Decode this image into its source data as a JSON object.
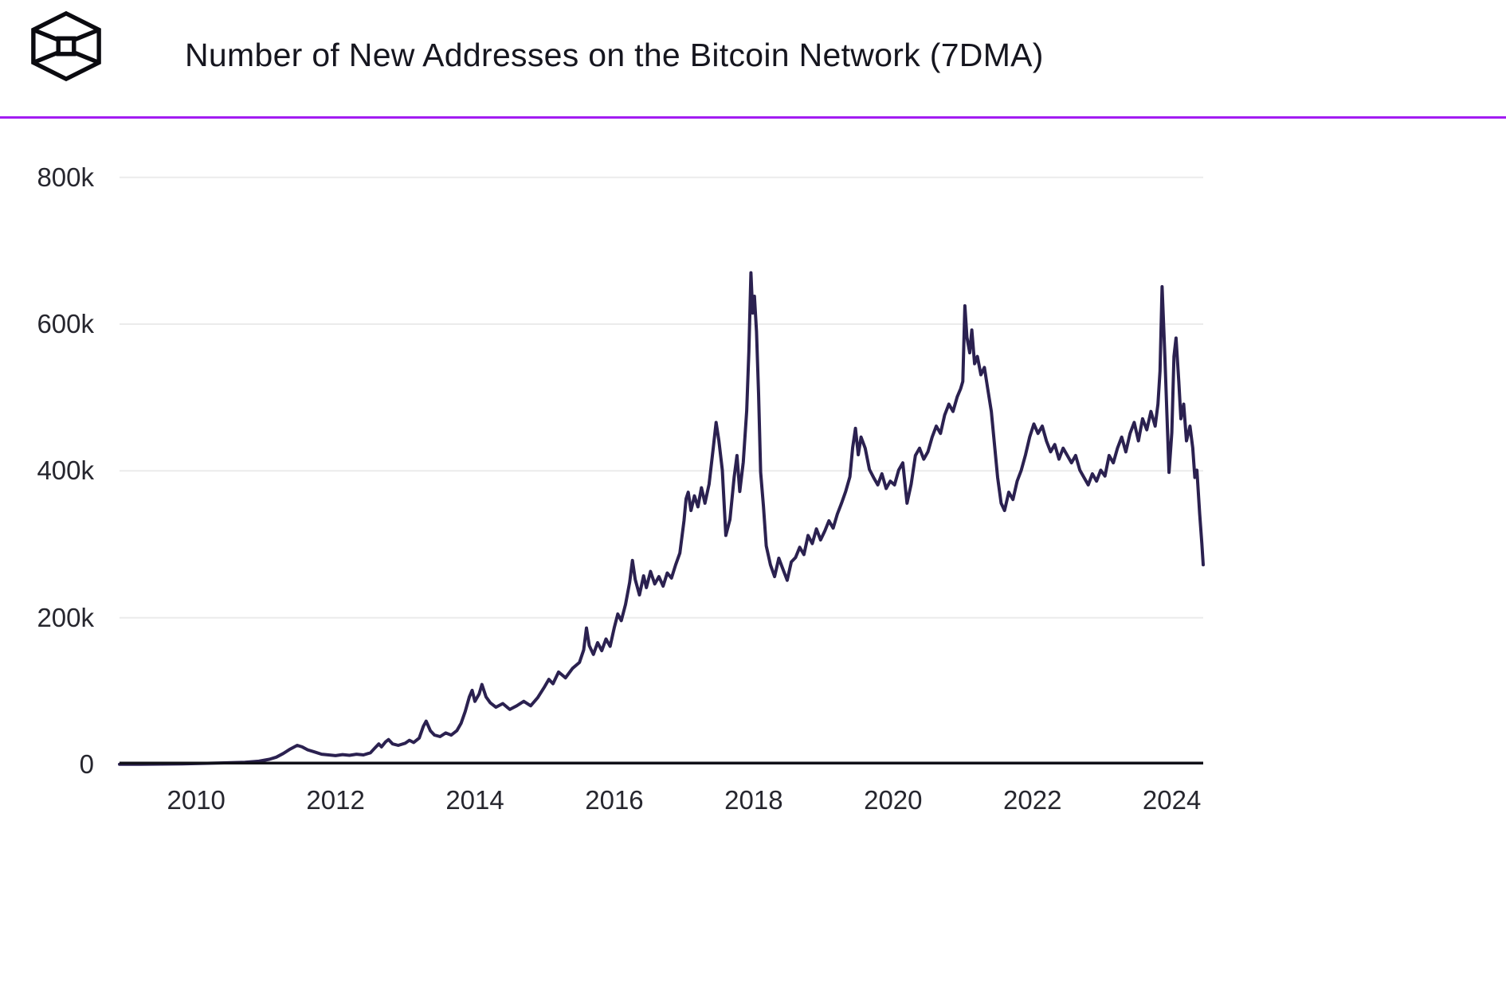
{
  "header": {
    "title": "Number of New Addresses on the Bitcoin Network (7DMA)",
    "logo_icon": "wireframe-cube-logo"
  },
  "colors": {
    "accent": "#a21df2",
    "line": "#2b2150",
    "grid": "#ebebeb",
    "axis": "#101018",
    "text": "#26262e"
  },
  "chart_data": {
    "type": "line",
    "title": "Number of New Addresses on the Bitcoin Network (7DMA)",
    "xlabel": "",
    "ylabel": "",
    "y_unit": "thousand new addresses (7-day moving average)",
    "grid": true,
    "legend": "none",
    "xlim": [
      2008.9,
      2024.45
    ],
    "ylim": [
      0,
      855
    ],
    "xticks": [
      2010,
      2012,
      2014,
      2016,
      2018,
      2020,
      2022,
      2024
    ],
    "yticks": [
      {
        "value": 0,
        "label": "0"
      },
      {
        "value": 200,
        "label": "200k"
      },
      {
        "value": 400,
        "label": "400k"
      },
      {
        "value": 600,
        "label": "600k"
      },
      {
        "value": 800,
        "label": "800k"
      }
    ],
    "points": [
      [
        2008.9,
        0.2
      ],
      [
        2009.2,
        0.3
      ],
      [
        2009.5,
        0.5
      ],
      [
        2009.8,
        0.9
      ],
      [
        2010.1,
        1.5
      ],
      [
        2010.4,
        2.2
      ],
      [
        2010.7,
        3
      ],
      [
        2010.9,
        4.5
      ],
      [
        2011.05,
        7
      ],
      [
        2011.15,
        10
      ],
      [
        2011.25,
        15
      ],
      [
        2011.35,
        21
      ],
      [
        2011.45,
        26
      ],
      [
        2011.52,
        24
      ],
      [
        2011.6,
        20
      ],
      [
        2011.7,
        17
      ],
      [
        2011.8,
        14
      ],
      [
        2011.9,
        13
      ],
      [
        2012.0,
        12
      ],
      [
        2012.1,
        13.5
      ],
      [
        2012.2,
        12.5
      ],
      [
        2012.3,
        14
      ],
      [
        2012.4,
        13
      ],
      [
        2012.5,
        16
      ],
      [
        2012.56,
        22
      ],
      [
        2012.62,
        28
      ],
      [
        2012.66,
        24
      ],
      [
        2012.72,
        31
      ],
      [
        2012.76,
        34
      ],
      [
        2012.82,
        28
      ],
      [
        2012.9,
        26
      ],
      [
        2013.0,
        29
      ],
      [
        2013.06,
        33
      ],
      [
        2013.12,
        30
      ],
      [
        2013.2,
        36
      ],
      [
        2013.26,
        52
      ],
      [
        2013.3,
        59
      ],
      [
        2013.36,
        46
      ],
      [
        2013.42,
        40
      ],
      [
        2013.5,
        38
      ],
      [
        2013.58,
        43
      ],
      [
        2013.66,
        40
      ],
      [
        2013.74,
        46
      ],
      [
        2013.8,
        56
      ],
      [
        2013.86,
        72
      ],
      [
        2013.92,
        92
      ],
      [
        2013.96,
        101
      ],
      [
        2014.0,
        86
      ],
      [
        2014.06,
        96
      ],
      [
        2014.1,
        109
      ],
      [
        2014.16,
        92
      ],
      [
        2014.22,
        84
      ],
      [
        2014.3,
        78
      ],
      [
        2014.4,
        83
      ],
      [
        2014.5,
        75
      ],
      [
        2014.6,
        80
      ],
      [
        2014.7,
        86
      ],
      [
        2014.8,
        80
      ],
      [
        2014.9,
        91
      ],
      [
        2015.0,
        106
      ],
      [
        2015.06,
        116
      ],
      [
        2015.12,
        110
      ],
      [
        2015.2,
        126
      ],
      [
        2015.3,
        118
      ],
      [
        2015.4,
        131
      ],
      [
        2015.5,
        139
      ],
      [
        2015.56,
        156
      ],
      [
        2015.6,
        186
      ],
      [
        2015.64,
        162
      ],
      [
        2015.7,
        150
      ],
      [
        2015.76,
        166
      ],
      [
        2015.82,
        155
      ],
      [
        2015.88,
        171
      ],
      [
        2015.94,
        161
      ],
      [
        2016.0,
        187
      ],
      [
        2016.05,
        205
      ],
      [
        2016.1,
        196
      ],
      [
        2016.16,
        218
      ],
      [
        2016.22,
        248
      ],
      [
        2016.26,
        278
      ],
      [
        2016.3,
        252
      ],
      [
        2016.36,
        231
      ],
      [
        2016.42,
        257
      ],
      [
        2016.46,
        241
      ],
      [
        2016.52,
        263
      ],
      [
        2016.58,
        246
      ],
      [
        2016.64,
        256
      ],
      [
        2016.7,
        243
      ],
      [
        2016.76,
        261
      ],
      [
        2016.82,
        254
      ],
      [
        2016.88,
        272
      ],
      [
        2016.94,
        288
      ],
      [
        2017.0,
        332
      ],
      [
        2017.03,
        362
      ],
      [
        2017.06,
        371
      ],
      [
        2017.1,
        346
      ],
      [
        2017.15,
        366
      ],
      [
        2017.2,
        351
      ],
      [
        2017.25,
        377
      ],
      [
        2017.3,
        356
      ],
      [
        2017.36,
        382
      ],
      [
        2017.42,
        432
      ],
      [
        2017.46,
        466
      ],
      [
        2017.5,
        441
      ],
      [
        2017.55,
        401
      ],
      [
        2017.6,
        312
      ],
      [
        2017.66,
        334
      ],
      [
        2017.72,
        392
      ],
      [
        2017.76,
        421
      ],
      [
        2017.8,
        372
      ],
      [
        2017.85,
        412
      ],
      [
        2017.9,
        482
      ],
      [
        2017.93,
        562
      ],
      [
        2017.96,
        670
      ],
      [
        2017.985,
        615
      ],
      [
        2018.01,
        638
      ],
      [
        2018.04,
        590
      ],
      [
        2018.07,
        505
      ],
      [
        2018.1,
        398
      ],
      [
        2018.14,
        352
      ],
      [
        2018.18,
        298
      ],
      [
        2018.24,
        272
      ],
      [
        2018.3,
        256
      ],
      [
        2018.36,
        281
      ],
      [
        2018.42,
        266
      ],
      [
        2018.48,
        251
      ],
      [
        2018.54,
        276
      ],
      [
        2018.6,
        282
      ],
      [
        2018.66,
        296
      ],
      [
        2018.72,
        286
      ],
      [
        2018.78,
        312
      ],
      [
        2018.84,
        301
      ],
      [
        2018.9,
        321
      ],
      [
        2018.96,
        306
      ],
      [
        2019.02,
        318
      ],
      [
        2019.08,
        332
      ],
      [
        2019.14,
        322
      ],
      [
        2019.2,
        341
      ],
      [
        2019.26,
        356
      ],
      [
        2019.32,
        372
      ],
      [
        2019.38,
        392
      ],
      [
        2019.42,
        432
      ],
      [
        2019.46,
        458
      ],
      [
        2019.5,
        422
      ],
      [
        2019.54,
        446
      ],
      [
        2019.6,
        431
      ],
      [
        2019.66,
        402
      ],
      [
        2019.72,
        391
      ],
      [
        2019.78,
        381
      ],
      [
        2019.84,
        396
      ],
      [
        2019.9,
        376
      ],
      [
        2019.96,
        386
      ],
      [
        2020.02,
        381
      ],
      [
        2020.08,
        401
      ],
      [
        2020.14,
        411
      ],
      [
        2020.2,
        356
      ],
      [
        2020.26,
        382
      ],
      [
        2020.32,
        421
      ],
      [
        2020.38,
        431
      ],
      [
        2020.44,
        416
      ],
      [
        2020.5,
        426
      ],
      [
        2020.56,
        446
      ],
      [
        2020.62,
        461
      ],
      [
        2020.68,
        451
      ],
      [
        2020.74,
        476
      ],
      [
        2020.8,
        491
      ],
      [
        2020.86,
        481
      ],
      [
        2020.92,
        501
      ],
      [
        2020.97,
        512
      ],
      [
        2021.0,
        522
      ],
      [
        2021.03,
        625
      ],
      [
        2021.06,
        582
      ],
      [
        2021.1,
        561
      ],
      [
        2021.13,
        592
      ],
      [
        2021.17,
        546
      ],
      [
        2021.21,
        556
      ],
      [
        2021.26,
        531
      ],
      [
        2021.31,
        541
      ],
      [
        2021.36,
        511
      ],
      [
        2021.41,
        481
      ],
      [
        2021.46,
        431
      ],
      [
        2021.5,
        391
      ],
      [
        2021.55,
        356
      ],
      [
        2021.6,
        346
      ],
      [
        2021.66,
        371
      ],
      [
        2021.72,
        361
      ],
      [
        2021.78,
        386
      ],
      [
        2021.84,
        401
      ],
      [
        2021.9,
        422
      ],
      [
        2021.96,
        446
      ],
      [
        2022.02,
        464
      ],
      [
        2022.08,
        451
      ],
      [
        2022.14,
        461
      ],
      [
        2022.2,
        441
      ],
      [
        2022.26,
        426
      ],
      [
        2022.32,
        436
      ],
      [
        2022.38,
        416
      ],
      [
        2022.44,
        431
      ],
      [
        2022.5,
        421
      ],
      [
        2022.56,
        411
      ],
      [
        2022.62,
        421
      ],
      [
        2022.68,
        401
      ],
      [
        2022.74,
        391
      ],
      [
        2022.8,
        381
      ],
      [
        2022.86,
        396
      ],
      [
        2022.92,
        386
      ],
      [
        2022.98,
        401
      ],
      [
        2023.04,
        393
      ],
      [
        2023.1,
        421
      ],
      [
        2023.16,
        411
      ],
      [
        2023.22,
        431
      ],
      [
        2023.28,
        446
      ],
      [
        2023.34,
        426
      ],
      [
        2023.4,
        451
      ],
      [
        2023.46,
        466
      ],
      [
        2023.52,
        441
      ],
      [
        2023.58,
        471
      ],
      [
        2023.64,
        456
      ],
      [
        2023.7,
        481
      ],
      [
        2023.76,
        461
      ],
      [
        2023.8,
        491
      ],
      [
        2023.83,
        536
      ],
      [
        2023.86,
        651
      ],
      [
        2023.9,
        556
      ],
      [
        2023.93,
        476
      ],
      [
        2023.96,
        398
      ],
      [
        2024.0,
        452
      ],
      [
        2024.03,
        556
      ],
      [
        2024.06,
        581
      ],
      [
        2024.1,
        521
      ],
      [
        2024.13,
        471
      ],
      [
        2024.17,
        491
      ],
      [
        2024.21,
        441
      ],
      [
        2024.26,
        461
      ],
      [
        2024.3,
        431
      ],
      [
        2024.33,
        391
      ],
      [
        2024.36,
        401
      ],
      [
        2024.4,
        341
      ],
      [
        2024.43,
        301
      ],
      [
        2024.45,
        272
      ]
    ]
  }
}
